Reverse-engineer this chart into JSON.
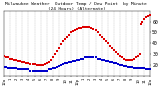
{
  "title": "Milwaukee Weather  Outdoor Temp / Dew Point  by Minute  (24 Hours) (Alternate)",
  "background_color": "#ffffff",
  "grid_color": "#888888",
  "temp_color": "#dd0000",
  "dewpoint_color": "#0000cc",
  "ylim": [
    10,
    70
  ],
  "xlim": [
    0,
    1440
  ],
  "yticks": [
    20,
    30,
    40,
    50,
    60
  ],
  "ylabel_fontsize": 3.5,
  "xlabel_fontsize": 2.8,
  "title_fontsize": 3.2,
  "dot_size": 0.8,
  "temp_data": [
    [
      0,
      28
    ],
    [
      20,
      27
    ],
    [
      40,
      27
    ],
    [
      60,
      26
    ],
    [
      80,
      26
    ],
    [
      100,
      25
    ],
    [
      120,
      25
    ],
    [
      140,
      24
    ],
    [
      160,
      24
    ],
    [
      180,
      23
    ],
    [
      200,
      23
    ],
    [
      220,
      22
    ],
    [
      240,
      22
    ],
    [
      260,
      21
    ],
    [
      280,
      21
    ],
    [
      300,
      21
    ],
    [
      320,
      20
    ],
    [
      340,
      20
    ],
    [
      360,
      20
    ],
    [
      380,
      20
    ],
    [
      400,
      21
    ],
    [
      420,
      22
    ],
    [
      440,
      23
    ],
    [
      460,
      25
    ],
    [
      480,
      27
    ],
    [
      500,
      30
    ],
    [
      520,
      33
    ],
    [
      540,
      36
    ],
    [
      560,
      39
    ],
    [
      580,
      42
    ],
    [
      600,
      44
    ],
    [
      620,
      46
    ],
    [
      640,
      48
    ],
    [
      660,
      50
    ],
    [
      680,
      51
    ],
    [
      700,
      52
    ],
    [
      720,
      53
    ],
    [
      740,
      54
    ],
    [
      760,
      54
    ],
    [
      780,
      55
    ],
    [
      800,
      55
    ],
    [
      820,
      55
    ],
    [
      840,
      55
    ],
    [
      860,
      54
    ],
    [
      880,
      53
    ],
    [
      900,
      52
    ],
    [
      920,
      50
    ],
    [
      940,
      48
    ],
    [
      960,
      46
    ],
    [
      980,
      44
    ],
    [
      1000,
      42
    ],
    [
      1020,
      40
    ],
    [
      1040,
      38
    ],
    [
      1060,
      36
    ],
    [
      1080,
      34
    ],
    [
      1100,
      32
    ],
    [
      1120,
      30
    ],
    [
      1140,
      28
    ],
    [
      1160,
      27
    ],
    [
      1180,
      26
    ],
    [
      1200,
      25
    ],
    [
      1220,
      25
    ],
    [
      1240,
      25
    ],
    [
      1260,
      25
    ],
    [
      1280,
      26
    ],
    [
      1300,
      27
    ],
    [
      1320,
      28
    ],
    [
      1340,
      30
    ],
    [
      1350,
      58
    ],
    [
      1360,
      60
    ],
    [
      1380,
      62
    ],
    [
      1400,
      64
    ],
    [
      1420,
      65
    ],
    [
      1440,
      66
    ]
  ],
  "dew_data": [
    [
      0,
      18
    ],
    [
      20,
      18
    ],
    [
      40,
      17
    ],
    [
      60,
      17
    ],
    [
      80,
      17
    ],
    [
      100,
      17
    ],
    [
      120,
      17
    ],
    [
      140,
      16
    ],
    [
      160,
      16
    ],
    [
      180,
      16
    ],
    [
      200,
      16
    ],
    [
      220,
      16
    ],
    [
      240,
      16
    ],
    [
      260,
      15
    ],
    [
      280,
      15
    ],
    [
      300,
      15
    ],
    [
      320,
      15
    ],
    [
      340,
      15
    ],
    [
      360,
      15
    ],
    [
      380,
      15
    ],
    [
      400,
      15
    ],
    [
      420,
      15
    ],
    [
      440,
      16
    ],
    [
      460,
      16
    ],
    [
      480,
      17
    ],
    [
      500,
      17
    ],
    [
      520,
      18
    ],
    [
      540,
      19
    ],
    [
      560,
      20
    ],
    [
      580,
      21
    ],
    [
      600,
      22
    ],
    [
      620,
      22
    ],
    [
      640,
      23
    ],
    [
      660,
      23
    ],
    [
      680,
      24
    ],
    [
      700,
      24
    ],
    [
      720,
      25
    ],
    [
      740,
      25
    ],
    [
      760,
      26
    ],
    [
      780,
      26
    ],
    [
      800,
      27
    ],
    [
      820,
      27
    ],
    [
      840,
      27
    ],
    [
      860,
      27
    ],
    [
      880,
      27
    ],
    [
      900,
      27
    ],
    [
      920,
      26
    ],
    [
      940,
      26
    ],
    [
      960,
      25
    ],
    [
      980,
      25
    ],
    [
      1000,
      24
    ],
    [
      1020,
      24
    ],
    [
      1040,
      23
    ],
    [
      1060,
      23
    ],
    [
      1080,
      22
    ],
    [
      1100,
      22
    ],
    [
      1120,
      21
    ],
    [
      1140,
      20
    ],
    [
      1160,
      20
    ],
    [
      1180,
      19
    ],
    [
      1200,
      19
    ],
    [
      1220,
      18
    ],
    [
      1240,
      18
    ],
    [
      1260,
      18
    ],
    [
      1280,
      17
    ],
    [
      1300,
      17
    ],
    [
      1320,
      17
    ],
    [
      1340,
      17
    ],
    [
      1360,
      17
    ],
    [
      1380,
      17
    ],
    [
      1400,
      16
    ],
    [
      1420,
      16
    ],
    [
      1440,
      16
    ]
  ],
  "xtick_positions": [
    0,
    60,
    120,
    180,
    240,
    300,
    360,
    420,
    480,
    540,
    600,
    660,
    720,
    780,
    840,
    900,
    960,
    1020,
    1080,
    1140,
    1200,
    1260,
    1320,
    1380,
    1440
  ],
  "xtick_labels": [
    "12a",
    "1",
    "2",
    "3",
    "4",
    "5",
    "6",
    "7",
    "8",
    "9",
    "10",
    "11",
    "12p",
    "1",
    "2",
    "3",
    "4",
    "5",
    "6",
    "7",
    "8",
    "9",
    "10",
    "11",
    "12a"
  ],
  "vgrid_positions": [
    60,
    120,
    180,
    240,
    300,
    360,
    420,
    480,
    540,
    600,
    660,
    720,
    780,
    840,
    900,
    960,
    1020,
    1080,
    1140,
    1200,
    1260,
    1320,
    1380
  ]
}
